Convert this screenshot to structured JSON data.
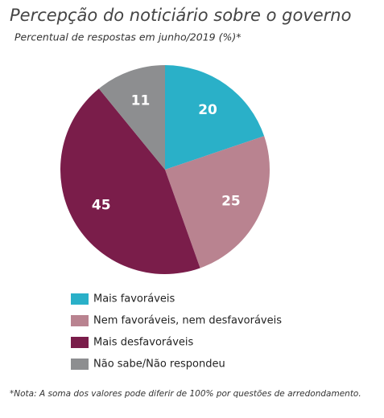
{
  "chart_data": {
    "type": "pie",
    "title": "Percepção do noticiário sobre o governo",
    "subtitle": "Percentual de respostas em junho/2019 (%)*",
    "categories": [
      "Mais favoráveis",
      "Nem favoráveis, nem desfavoráveis",
      "Mais desfavoráveis",
      "Não sabe/Não respondeu"
    ],
    "values": [
      20,
      25,
      45,
      11
    ],
    "colors": [
      "#2ab0c8",
      "#b98390",
      "#7a1d4a",
      "#8d8e90"
    ],
    "note": "*Nota: A soma dos valores pode diferir de 100% por questões de arredondamento."
  }
}
